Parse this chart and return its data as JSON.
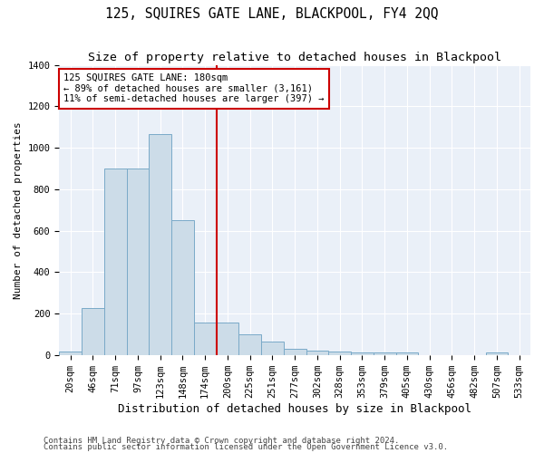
{
  "title": "125, SQUIRES GATE LANE, BLACKPOOL, FY4 2QQ",
  "subtitle": "Size of property relative to detached houses in Blackpool",
  "xlabel": "Distribution of detached houses by size in Blackpool",
  "ylabel": "Number of detached properties",
  "categories": [
    "20sqm",
    "46sqm",
    "71sqm",
    "97sqm",
    "123sqm",
    "148sqm",
    "174sqm",
    "200sqm",
    "225sqm",
    "251sqm",
    "277sqm",
    "302sqm",
    "328sqm",
    "353sqm",
    "379sqm",
    "405sqm",
    "430sqm",
    "456sqm",
    "482sqm",
    "507sqm",
    "533sqm"
  ],
  "values": [
    15,
    225,
    900,
    900,
    1065,
    650,
    155,
    155,
    100,
    65,
    30,
    20,
    15,
    12,
    12,
    10,
    0,
    0,
    0,
    12,
    0
  ],
  "bar_color": "#ccdce8",
  "bar_edge_color": "#7aaac8",
  "background_color": "#eaf0f8",
  "grid_color": "#ffffff",
  "vline_x_index": 6,
  "vline_color": "#cc0000",
  "annotation_text": "125 SQUIRES GATE LANE: 180sqm\n← 89% of detached houses are smaller (3,161)\n11% of semi-detached houses are larger (397) →",
  "annotation_box_color": "#ffffff",
  "annotation_box_edge_color": "#cc0000",
  "ylim": [
    0,
    1400
  ],
  "yticks": [
    0,
    200,
    400,
    600,
    800,
    1000,
    1200,
    1400
  ],
  "footer1": "Contains HM Land Registry data © Crown copyright and database right 2024.",
  "footer2": "Contains public sector information licensed under the Open Government Licence v3.0.",
  "title_fontsize": 10.5,
  "subtitle_fontsize": 9.5,
  "xlabel_fontsize": 9,
  "ylabel_fontsize": 8,
  "tick_fontsize": 7.5,
  "annotation_fontsize": 7.5,
  "footer_fontsize": 6.5
}
